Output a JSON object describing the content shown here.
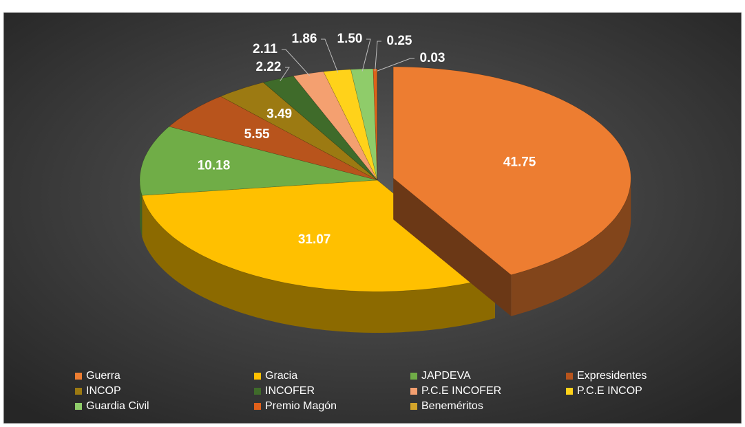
{
  "chart_data": {
    "type": "pie3d",
    "categories": [
      "Guerra",
      "Gracia",
      "JAPDEVA",
      "Expresidentes",
      "INCOP",
      "INCOFER",
      "P.C.E INCOFER",
      "P.C.E INCOP",
      "Guardia Civil",
      "Premio Magón",
      "Beneméritos"
    ],
    "values": [
      41.75,
      31.07,
      10.18,
      5.55,
      3.49,
      2.22,
      2.11,
      1.86,
      1.5,
      0.25,
      0.03
    ],
    "value_labels": [
      "41.75",
      "31.07",
      "10.18",
      "5.55",
      "3.49",
      "2.22",
      "2.11",
      "1.86",
      "1.50",
      "0.25",
      "0.03"
    ],
    "colors": [
      "#ed7d31",
      "#ffc000",
      "#70ad47",
      "#b8541c",
      "#9c7a12",
      "#3f6b2a",
      "#f4a070",
      "#ffd21a",
      "#8fcc6a",
      "#e0601a",
      "#d4a52a"
    ],
    "legend": "bottom"
  }
}
